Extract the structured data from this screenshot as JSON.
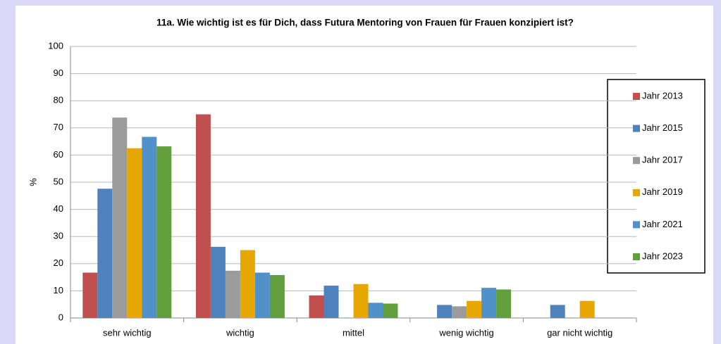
{
  "chart_data": {
    "type": "bar",
    "title": "11a. Wie wichtig ist es für Dich, dass Futura Mentoring von Frauen für Frauen konzipiert ist?",
    "ylabel": "%",
    "categories": [
      "sehr wichtig",
      "wichtig",
      "mittel",
      "wenig wichtig",
      "gar nicht wichtig"
    ],
    "series": [
      {
        "name": "Jahr 2013",
        "color": "#c0504d",
        "values": [
          16.7,
          75,
          8.3,
          0,
          0
        ]
      },
      {
        "name": "Jahr 2015",
        "color": "#4f81bd",
        "values": [
          47.6,
          26.2,
          11.9,
          4.8,
          4.8
        ]
      },
      {
        "name": "Jahr 2017",
        "color": "#9b9b9b",
        "values": [
          73.8,
          17.4,
          0,
          4.3,
          0
        ]
      },
      {
        "name": "Jahr 2019",
        "color": "#e6a800",
        "values": [
          62.5,
          25,
          12.5,
          6.3,
          6.3
        ]
      },
      {
        "name": "Jahr 2021",
        "color": "#4f91c8",
        "values": [
          66.7,
          16.7,
          5.6,
          11.1,
          0
        ]
      },
      {
        "name": "Jahr 2023",
        "color": "#62a03e",
        "values": [
          63.2,
          15.8,
          5.3,
          10.5,
          0
        ]
      }
    ],
    "ylim": [
      0,
      100
    ],
    "yticks": [
      0,
      10,
      20,
      30,
      40,
      50,
      60,
      70,
      80,
      90,
      100
    ],
    "grid": true,
    "legend": "right"
  }
}
